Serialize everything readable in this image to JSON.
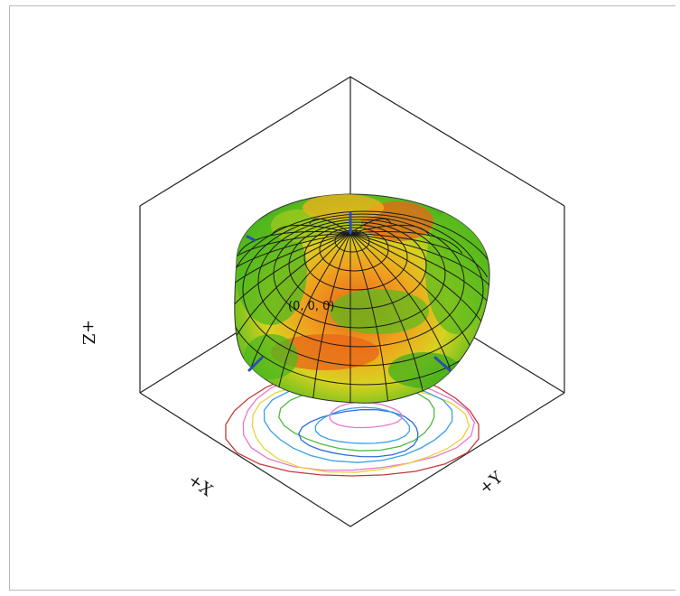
{
  "plot": {
    "origin_label": "(0, 0, 0)",
    "z_axis_label": "+Z",
    "x_axis_label": "+X",
    "y_axis_label": "+Y"
  },
  "colors": {
    "surface_high": "#e8641a",
    "surface_mid": "#f0b21e",
    "surface_low": "#4fb81e",
    "mesh": "#1a1a1a",
    "axis_marker": "#2a4fb0",
    "contour_colors": [
      "#c23a3a",
      "#e879c9",
      "#e6d43a",
      "#3aa0e6",
      "#4dbb3a",
      "#2a6ad9"
    ]
  }
}
